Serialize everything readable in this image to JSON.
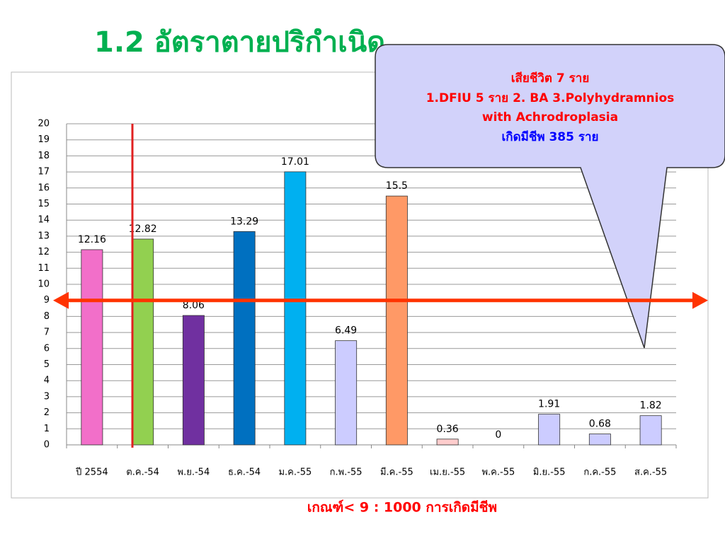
{
  "title": "1.2  อัตราตายปริกำเนิด",
  "callout": {
    "lines": [
      "เสียชีวิต 7 ราย",
      "1.DFIU 5 ราย  2. BA  3.Polyhydramnios",
      "with Achrodroplasia"
    ],
    "births": "เกิดมีชีพ 385 ราย"
  },
  "footer": "เกณฑ์< 9 : 1000 การเกิดมีชีพ",
  "chart_data": {
    "type": "bar",
    "categories": [
      "ปี 2554",
      "ต.ค.-54",
      "พ.ย.-54",
      "ธ.ค.-54",
      "ม.ค.-55",
      "ก.พ.-55",
      "มี.ค.-55",
      "เม.ย.-55",
      "พ.ค.-55",
      "มิ.ย.-55",
      "ก.ค.-55",
      "ส.ค.-55"
    ],
    "values": [
      12.16,
      12.82,
      8.06,
      13.29,
      17.01,
      6.49,
      15.5,
      0.36,
      0,
      1.91,
      0.68,
      1.82
    ],
    "colors": [
      "#f26fc9",
      "#92d050",
      "#7030a0",
      "#0070c0",
      "#00b0f0",
      "#ccccff",
      "#ff9966",
      "#ffcccc",
      "#ccccff",
      "#ccccff",
      "#ccccff",
      "#ccccff"
    ],
    "ylim": [
      0,
      20
    ],
    "yticks": [
      0,
      1,
      2,
      3,
      4,
      5,
      6,
      7,
      8,
      9,
      10,
      11,
      12,
      13,
      14,
      15,
      16,
      17,
      18,
      19,
      20
    ],
    "grid": true,
    "reference_line": 9
  }
}
